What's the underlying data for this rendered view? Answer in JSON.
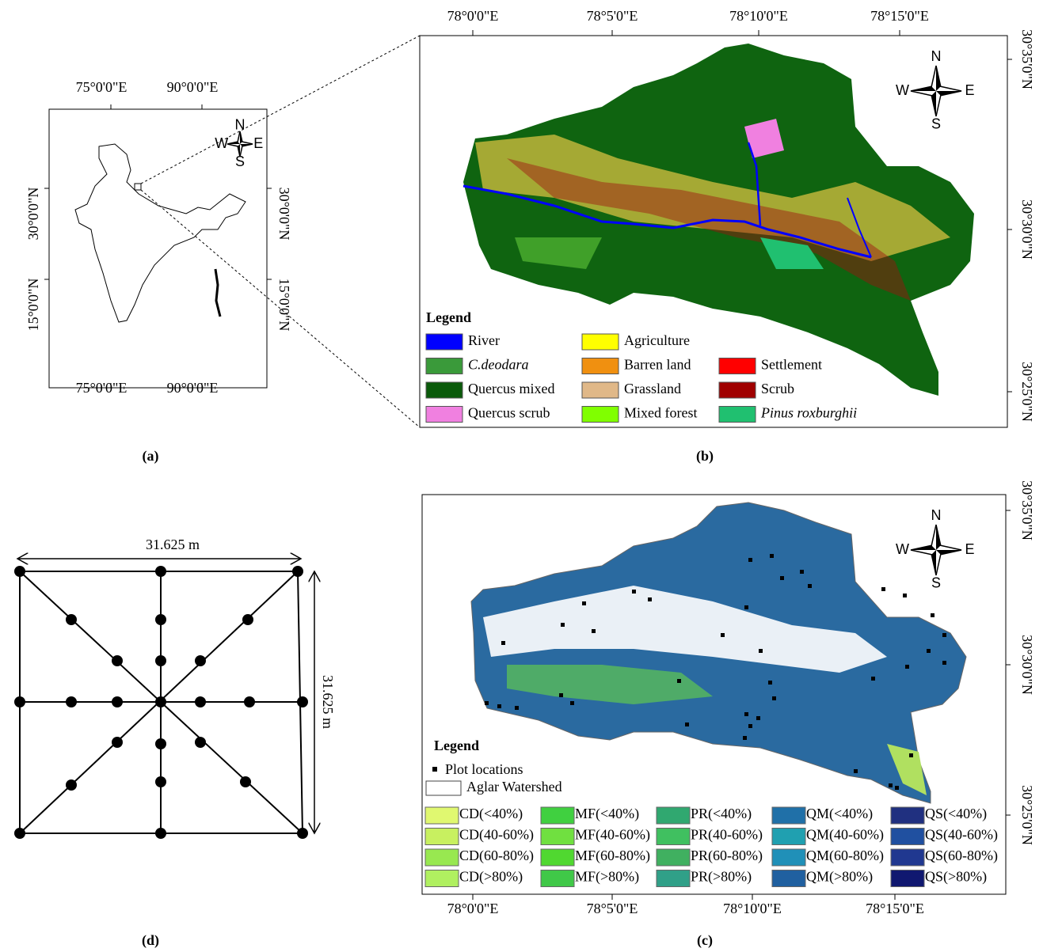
{
  "panel_a": {
    "caption": "(a)",
    "top_labels": [
      "75°0'0\"E",
      "90°0'0\"E"
    ],
    "bottom_labels": [
      "75°0'0\"E",
      "90°0'0\"E"
    ],
    "left_labels": [
      "30°0'0\"N",
      "15°0'0\"N"
    ],
    "right_labels": [
      "30°0'0\"N",
      "15°0'0\"N"
    ],
    "compass": {
      "n": "N",
      "w": "W",
      "e": "E",
      "s": "S"
    }
  },
  "panel_b": {
    "caption": "(b)",
    "top_labels": [
      "78°0'0\"E",
      "78°5'0\"E",
      "78°10'0\"E",
      "78°15'0\"E"
    ],
    "right_labels": [
      "30°35'0\"N",
      "30°30'0\"N",
      "30°25'0\"N"
    ],
    "compass": {
      "n": "N",
      "w": "W",
      "e": "E",
      "s": "S"
    },
    "legend_title": "Legend",
    "legend": [
      {
        "label": "River",
        "color": "#0000ff"
      },
      {
        "label": "C.deodara",
        "color": "#3a9a3a",
        "style": "italic"
      },
      {
        "label": "Quercus mixed",
        "color": "#0a5a0a"
      },
      {
        "label": "Quercus scrub",
        "color": "#f080e0"
      },
      {
        "label": "Agriculture",
        "color": "#ffff00"
      },
      {
        "label": "Barren land",
        "color": "#f09010"
      },
      {
        "label": "Grassland",
        "color": "#e0b888"
      },
      {
        "label": "Mixed forest",
        "color": "#80ff00"
      },
      {
        "label": "Settlement",
        "color": "#ff0000"
      },
      {
        "label": "Scrub",
        "color": "#a00000"
      },
      {
        "label": "Pinus roxburghii",
        "color": "#20c070",
        "style": "italic"
      }
    ]
  },
  "panel_c": {
    "caption": "(c)",
    "bottom_labels": [
      "78°0'0\"E",
      "78°5'0\"E",
      "78°10'0\"E",
      "78°15'0\"E"
    ],
    "right_labels": [
      "30°35'0\"N",
      "30°30'0\"N",
      "30°25'0\"N"
    ],
    "compass": {
      "n": "N",
      "w": "W",
      "e": "E",
      "s": "S"
    },
    "legend_title": "Legend",
    "plot_locations": "Plot locations",
    "watershed": "Aglar Watershed",
    "classes": [
      [
        {
          "label": "CD(<40%)",
          "color": "#e0f870"
        },
        {
          "label": "CD(40-60%)",
          "color": "#c8f060"
        },
        {
          "label": "CD(60-80%)",
          "color": "#98e850"
        },
        {
          "label": "CD(>80%)",
          "color": "#b0f060"
        }
      ],
      [
        {
          "label": "MF(<40%)",
          "color": "#40d040"
        },
        {
          "label": "MF(40-60%)",
          "color": "#70e040"
        },
        {
          "label": "MF(60-80%)",
          "color": "#50d830"
        },
        {
          "label": "MF(>80%)",
          "color": "#40c848"
        }
      ],
      [
        {
          "label": "PR(<40%)",
          "color": "#30a870"
        },
        {
          "label": "PR(40-60%)",
          "color": "#40c060"
        },
        {
          "label": "PR(60-80%)",
          "color": "#40b060"
        },
        {
          "label": "PR(>80%)",
          "color": "#30a088"
        }
      ],
      [
        {
          "label": "QM(<40%)",
          "color": "#2070a8"
        },
        {
          "label": "QM(40-60%)",
          "color": "#20a0b0"
        },
        {
          "label": "QM(60-80%)",
          "color": "#2090b8"
        },
        {
          "label": "QM(>80%)",
          "color": "#2060a0"
        }
      ],
      [
        {
          "label": "QS(<40%)",
          "color": "#203080"
        },
        {
          "label": "QS(40-60%)",
          "color": "#2050a0"
        },
        {
          "label": "QS(60-80%)",
          "color": "#203890"
        },
        {
          "label": "QS(>80%)",
          "color": "#101870"
        }
      ]
    ]
  },
  "panel_d": {
    "caption": "(d)",
    "width_label": "31.625 m",
    "height_label": "31.625 m"
  }
}
